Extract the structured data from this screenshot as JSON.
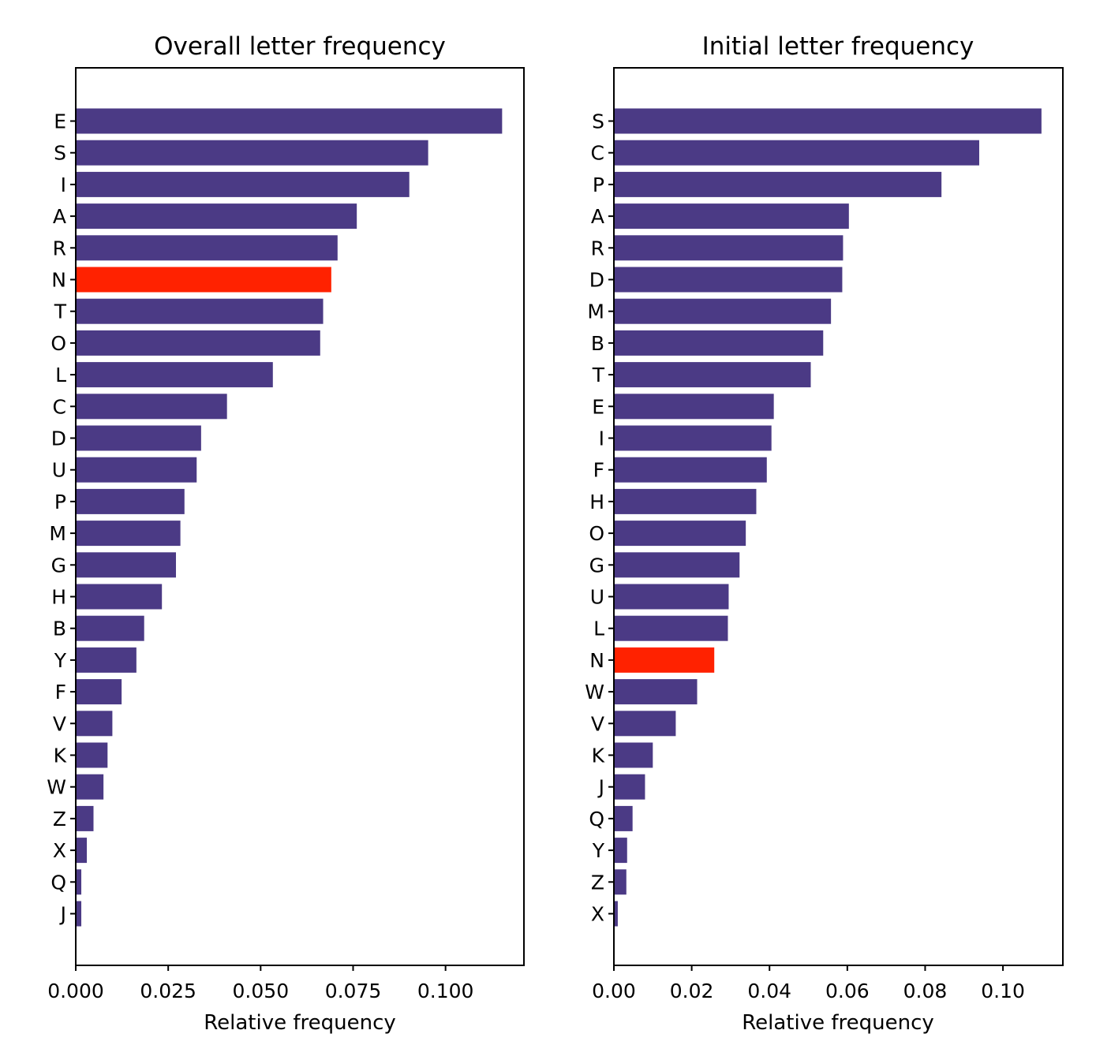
{
  "chart_data": [
    {
      "type": "bar",
      "orientation": "horizontal",
      "title": "Overall letter frequency",
      "xlabel": "Relative frequency",
      "ylabel": "",
      "xlim": [
        0,
        0.1212
      ],
      "xticks": [
        0.0,
        0.025,
        0.05,
        0.075,
        0.1
      ],
      "xtick_labels": [
        "0.000",
        "0.025",
        "0.050",
        "0.075",
        "0.100"
      ],
      "categories": [
        "E",
        "S",
        "I",
        "A",
        "R",
        "N",
        "T",
        "O",
        "L",
        "C",
        "D",
        "U",
        "P",
        "M",
        "G",
        "H",
        "B",
        "Y",
        "F",
        "V",
        "K",
        "W",
        "Z",
        "X",
        "Q",
        "J"
      ],
      "values": [
        0.1153,
        0.0953,
        0.0902,
        0.076,
        0.0708,
        0.0691,
        0.0669,
        0.0661,
        0.0533,
        0.0409,
        0.0339,
        0.0327,
        0.0294,
        0.0283,
        0.0271,
        0.0233,
        0.0185,
        0.0164,
        0.0124,
        0.0099,
        0.0086,
        0.0075,
        0.0048,
        0.003,
        0.0015,
        0.0015
      ],
      "highlight": "N",
      "grid": false,
      "colors": {
        "bar": "#4b3a85",
        "highlight": "#ff2200"
      }
    },
    {
      "type": "bar",
      "orientation": "horizontal",
      "title": "Initial letter frequency",
      "xlabel": "Relative frequency",
      "ylabel": "",
      "xlim": [
        0,
        0.1154
      ],
      "xticks": [
        0.0,
        0.02,
        0.04,
        0.06,
        0.08,
        0.1
      ],
      "xtick_labels": [
        "0.00",
        "0.02",
        "0.04",
        "0.06",
        "0.08",
        "0.10"
      ],
      "categories": [
        "S",
        "C",
        "P",
        "A",
        "R",
        "D",
        "M",
        "B",
        "T",
        "E",
        "I",
        "F",
        "H",
        "O",
        "G",
        "U",
        "L",
        "N",
        "W",
        "V",
        "K",
        "J",
        "Q",
        "Y",
        "Z",
        "X"
      ],
      "values": [
        0.1099,
        0.0939,
        0.0842,
        0.0604,
        0.0589,
        0.0587,
        0.0558,
        0.0538,
        0.0506,
        0.0411,
        0.0405,
        0.0393,
        0.0366,
        0.0339,
        0.0323,
        0.0295,
        0.0293,
        0.0258,
        0.0214,
        0.0159,
        0.01,
        0.008,
        0.0048,
        0.0034,
        0.0032,
        0.001
      ],
      "highlight": "N",
      "grid": false,
      "colors": {
        "bar": "#4b3a85",
        "highlight": "#ff2200"
      }
    }
  ]
}
